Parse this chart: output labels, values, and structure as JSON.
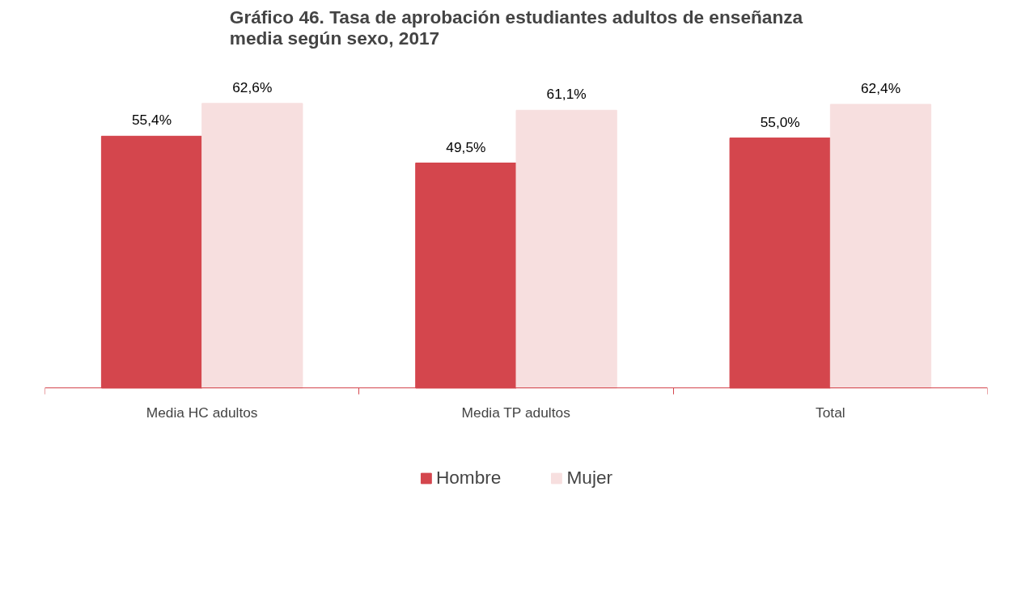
{
  "chart_data": {
    "type": "bar",
    "title": "Gráfico 46. Tasa de aprobación estudiantes adultos de enseñanza\nmedia según sexo, 2017",
    "categories": [
      "Media HC adultos",
      "Media TP adultos",
      "Total"
    ],
    "series": [
      {
        "name": "Hombre",
        "color": "#d4464d",
        "values": [
          55.4,
          49.5,
          55.0
        ],
        "value_labels": [
          "55,4%",
          "49,5%",
          "55,0%"
        ]
      },
      {
        "name": "Mujer",
        "color": "#f7dfdf",
        "values": [
          62.6,
          61.1,
          62.4
        ],
        "value_labels": [
          "62,6%",
          "61,1%",
          "62,4%"
        ]
      }
    ],
    "legend": "bottom",
    "grid": false
  }
}
